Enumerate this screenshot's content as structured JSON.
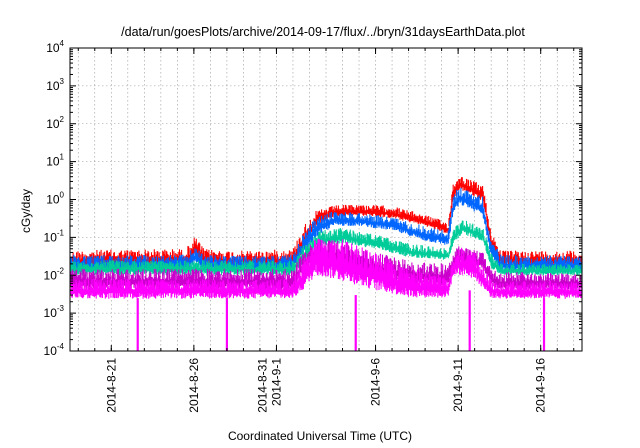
{
  "chart_data": {
    "type": "area",
    "title": "/data/run/goesPlots/archive/2014-09-17/flux/../bryn/31daysEarthData.plot",
    "xlabel": "Coordinated Universal Time (UTC)",
    "ylabel": "cGy/day",
    "yscale": "log",
    "ylim": [
      0.0001,
      10000
    ],
    "xlim": [
      -2.5,
      28.5
    ],
    "grid": true,
    "legend": "none",
    "y_ticks": [
      {
        "value": 0.0001,
        "base": "10",
        "exp": "-4"
      },
      {
        "value": 0.001,
        "base": "10",
        "exp": "-3"
      },
      {
        "value": 0.01,
        "base": "10",
        "exp": "-2"
      },
      {
        "value": 0.1,
        "base": "10",
        "exp": "-1"
      },
      {
        "value": 1,
        "base": "10",
        "exp": "0"
      },
      {
        "value": 10,
        "base": "10",
        "exp": "1"
      },
      {
        "value": 100,
        "base": "10",
        "exp": "2"
      },
      {
        "value": 1000,
        "base": "10",
        "exp": "3"
      },
      {
        "value": 10000,
        "base": "10",
        "exp": "4"
      }
    ],
    "x_ticks": [
      {
        "value": 0,
        "lines": [
          "2014-8-21"
        ]
      },
      {
        "value": 5,
        "lines": [
          "2014-8-26"
        ]
      },
      {
        "value": 10,
        "lines": [
          "2014-8-31",
          "2014-9-1"
        ]
      },
      {
        "value": 16,
        "lines": [
          "2014-9-6"
        ]
      },
      {
        "value": 21,
        "lines": [
          "2014-9-11"
        ]
      },
      {
        "value": 26,
        "lines": [
          "2014-9-16"
        ]
      }
    ],
    "x_gridlines": [
      -2,
      -1,
      0,
      1,
      2,
      3,
      4,
      5,
      6,
      7,
      8,
      9,
      10,
      11,
      12,
      13,
      14,
      15,
      16,
      17,
      18,
      19,
      20,
      21,
      22,
      23,
      24,
      25,
      26,
      27,
      28
    ],
    "series": [
      {
        "color": "#ff0000",
        "x": [
          -2.5,
          0,
          4.5,
          5.1,
          5.6,
          7,
          9,
          11,
          11.6,
          12.4,
          13.5,
          15,
          17,
          19,
          20.4,
          20.7,
          21.1,
          21.6,
          22.5,
          23,
          23.6,
          25,
          28.5
        ],
        "lo": [
          0.015,
          0.015,
          0.016,
          0.03,
          0.018,
          0.016,
          0.016,
          0.016,
          0.04,
          0.2,
          0.35,
          0.38,
          0.32,
          0.2,
          0.12,
          0.9,
          1.8,
          1.5,
          0.9,
          0.05,
          0.018,
          0.016,
          0.016
        ],
        "hi": [
          0.045,
          0.048,
          0.05,
          0.11,
          0.05,
          0.045,
          0.045,
          0.05,
          0.2,
          0.5,
          0.7,
          0.75,
          0.68,
          0.4,
          0.25,
          3,
          4.5,
          3.5,
          2.5,
          0.15,
          0.045,
          0.045,
          0.045
        ]
      },
      {
        "color": "#0066ff",
        "x": [
          -2.5,
          0,
          4.5,
          5.1,
          5.6,
          7,
          9,
          11,
          11.6,
          12.4,
          13.5,
          15,
          17,
          19,
          20.4,
          20.7,
          21.1,
          21.6,
          22.5,
          23,
          23.6,
          25,
          28.5
        ],
        "lo": [
          0.012,
          0.012,
          0.012,
          0.02,
          0.013,
          0.012,
          0.012,
          0.012,
          0.03,
          0.1,
          0.2,
          0.2,
          0.15,
          0.08,
          0.06,
          0.4,
          0.7,
          0.6,
          0.35,
          0.03,
          0.012,
          0.012,
          0.012
        ],
        "hi": [
          0.035,
          0.035,
          0.035,
          0.06,
          0.035,
          0.033,
          0.033,
          0.035,
          0.12,
          0.35,
          0.5,
          0.45,
          0.35,
          0.2,
          0.15,
          1.5,
          2.2,
          1.8,
          1.2,
          0.09,
          0.035,
          0.033,
          0.033
        ]
      },
      {
        "color": "#00cc99",
        "x": [
          -2.5,
          0,
          9,
          11,
          11.6,
          12.4,
          14,
          16,
          18,
          20.4,
          20.8,
          21.3,
          22.5,
          23,
          23.6,
          28.5
        ],
        "lo": [
          0.01,
          0.01,
          0.01,
          0.01,
          0.02,
          0.05,
          0.07,
          0.05,
          0.03,
          0.025,
          0.08,
          0.12,
          0.08,
          0.015,
          0.01,
          0.01
        ],
        "hi": [
          0.025,
          0.025,
          0.025,
          0.025,
          0.06,
          0.15,
          0.18,
          0.12,
          0.07,
          0.05,
          0.2,
          0.3,
          0.18,
          0.04,
          0.02,
          0.02
        ]
      },
      {
        "color": "#cc00cc",
        "x": [
          -2.5,
          0,
          9,
          11,
          11.6,
          12.4,
          14,
          16,
          18,
          20.4,
          21,
          22.5,
          23,
          23.6,
          28.5
        ],
        "lo": [
          0.004,
          0.004,
          0.004,
          0.004,
          0.01,
          0.02,
          0.015,
          0.008,
          0.006,
          0.005,
          0.02,
          0.015,
          0.005,
          0.004,
          0.004
        ],
        "hi": [
          0.015,
          0.015,
          0.015,
          0.015,
          0.04,
          0.09,
          0.08,
          0.04,
          0.025,
          0.02,
          0.06,
          0.04,
          0.015,
          0.012,
          0.012
        ]
      },
      {
        "color": "#ff00ff",
        "x": [
          -2.5,
          0,
          9,
          11,
          11.6,
          12.4,
          14,
          16,
          18,
          20.4,
          20.7,
          21.2,
          22,
          23,
          23.6,
          28.5
        ],
        "lo": [
          0.0024,
          0.0024,
          0.0024,
          0.0024,
          0.004,
          0.01,
          0.007,
          0.004,
          0.0026,
          0.0025,
          0.01,
          0.01,
          0.008,
          0.0025,
          0.0024,
          0.0024
        ],
        "hi": [
          0.008,
          0.008,
          0.008,
          0.008,
          0.025,
          0.1,
          0.09,
          0.04,
          0.015,
          0.01,
          0.04,
          0.06,
          0.04,
          0.008,
          0.007,
          0.007
        ]
      }
    ],
    "dropouts": [
      {
        "x": 1.6,
        "color": "#ff00ff",
        "low": 0.0001,
        "high": 0.0025
      },
      {
        "x": 7.0,
        "color": "#ff00ff",
        "low": 0.0001,
        "high": 0.0025
      },
      {
        "x": 14.8,
        "color": "#ff00ff",
        "low": 0.0001,
        "high": 0.003
      },
      {
        "x": 21.7,
        "color": "#ff00ff",
        "low": 0.0001,
        "high": 0.004
      },
      {
        "x": 26.2,
        "color": "#ff00ff",
        "low": 0.0001,
        "high": 0.0025
      }
    ]
  }
}
